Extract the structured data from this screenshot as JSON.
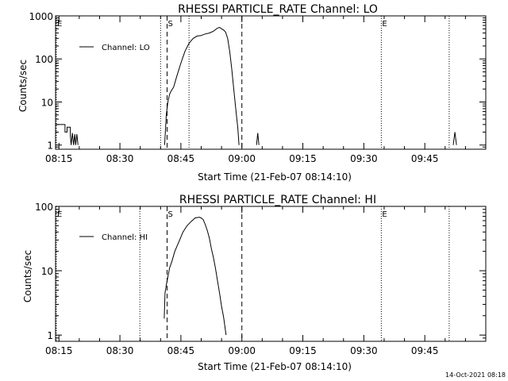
{
  "chart_data": [
    {
      "type": "line",
      "title": "RHESSI PARTICLE_RATE Channel: LO",
      "xlabel": "Start Time (21-Feb-07 08:14:10)",
      "ylabel": "Counts/sec",
      "yscale": "log",
      "ylim": [
        0.8,
        1000
      ],
      "yticks": [
        1,
        10,
        100,
        1000
      ],
      "ytick_labels": [
        "1",
        "10",
        "100",
        "1000"
      ],
      "xlim_min": [
        494.1667,
        600
      ],
      "xticks_min": [
        495,
        510,
        525,
        540,
        555,
        570,
        585
      ],
      "xtick_labels": [
        "08:15",
        "08:30",
        "08:45",
        "09:00",
        "09:15",
        "09:30",
        "09:45"
      ],
      "legend": {
        "label": "Channel: LO",
        "position": "top-left"
      },
      "markers": [
        {
          "type": "dashed",
          "x_min": 521.6,
          "label": "S"
        },
        {
          "type": "dashed",
          "x_min": 540.0,
          "label": ""
        },
        {
          "type": "dotted",
          "x_min": 520.0,
          "label": ""
        },
        {
          "type": "dotted",
          "x_min": 527.0,
          "label": ""
        },
        {
          "type": "dotted",
          "x_min": 574.3,
          "label": "E"
        },
        {
          "type": "dotted",
          "x_min": 591.0,
          "label": ""
        },
        {
          "type": "dotted",
          "x_min": 494.35,
          "label": "E"
        }
      ],
      "series": [
        {
          "name": "Channel: LO",
          "segments": [
            {
              "x": [
                494.2,
                496.5,
                496.5,
                497.0,
                497.0,
                497.8,
                497.8,
                498.0,
                498.3,
                498.6,
                498.9,
                499.1,
                499.4,
                499.7
              ],
              "y": [
                3,
                3,
                2,
                2,
                2.6,
                2.6,
                1.7,
                1.0,
                1.9,
                1.0,
                1.8,
                1.0,
                1.8,
                1.0
              ]
            },
            {
              "x": [
                521.0,
                521.4,
                521.8,
                522.2,
                522.6,
                523.2,
                524.0,
                525.0,
                526.0,
                527.0,
                528.0,
                529.0,
                530.0,
                531.0,
                532.0,
                533.0,
                534.0,
                534.5,
                535.0,
                535.5,
                536.0,
                536.5,
                537.0,
                537.5,
                538.0,
                538.5,
                539.0,
                539.3
              ],
              "y": [
                1.0,
                5,
                10,
                15,
                18,
                22,
                40,
                80,
                150,
                230,
                300,
                340,
                350,
                380,
                400,
                440,
                520,
                540,
                500,
                470,
                420,
                300,
                150,
                60,
                20,
                7,
                2.5,
                1.0
              ]
            },
            {
              "x": [
                543.6,
                543.9,
                544.2
              ],
              "y": [
                1.0,
                1.9,
                1.0
              ]
            },
            {
              "x": [
                592.0,
                592.4,
                592.8
              ],
              "y": [
                1.0,
                2.0,
                1.0
              ]
            }
          ]
        }
      ]
    },
    {
      "type": "line",
      "title": "RHESSI PARTICLE_RATE Channel: HI",
      "xlabel": "Start Time (21-Feb-07 08:14:10)",
      "ylabel": "Counts/sec",
      "yscale": "log",
      "ylim": [
        0.8,
        100
      ],
      "yticks": [
        1,
        10,
        100
      ],
      "ytick_labels": [
        "1",
        "10",
        "100"
      ],
      "xlim_min": [
        494.1667,
        600
      ],
      "xticks_min": [
        495,
        510,
        525,
        540,
        555,
        570,
        585
      ],
      "xtick_labels": [
        "08:15",
        "08:30",
        "08:45",
        "09:00",
        "09:15",
        "09:30",
        "09:45"
      ],
      "legend": {
        "label": "Channel: HI",
        "position": "top-left"
      },
      "markers": [
        {
          "type": "dashed",
          "x_min": 521.6,
          "label": "S"
        },
        {
          "type": "dashed",
          "x_min": 540.0,
          "label": ""
        },
        {
          "type": "dotted",
          "x_min": 514.9,
          "label": ""
        },
        {
          "type": "dotted",
          "x_min": 574.3,
          "label": "E"
        },
        {
          "type": "dotted",
          "x_min": 591.0,
          "label": ""
        },
        {
          "type": "dotted",
          "x_min": 494.35,
          "label": "E"
        }
      ],
      "series": [
        {
          "name": "Channel: HI",
          "segments": [
            {
              "x": [
                520.9,
                521.1,
                521.4,
                521.8,
                522.2,
                522.8,
                523.5,
                524.5,
                525.5,
                526.5,
                527.5,
                528.5,
                529.5,
                530.0,
                530.5,
                531.0,
                531.5,
                532.0,
                532.5,
                533.0,
                533.5,
                534.0,
                534.5,
                535.0,
                535.5,
                535.8,
                536.1
              ],
              "y": [
                1.8,
                4.5,
                6,
                8,
                11,
                14,
                20,
                28,
                40,
                50,
                58,
                66,
                68,
                66,
                62,
                52,
                42,
                32,
                22,
                16,
                11,
                7,
                4.5,
                2.8,
                1.9,
                1.4,
                1.0
              ]
            }
          ]
        }
      ]
    }
  ],
  "footer": {
    "timestamp": "14-Oct-2021 08:18"
  }
}
